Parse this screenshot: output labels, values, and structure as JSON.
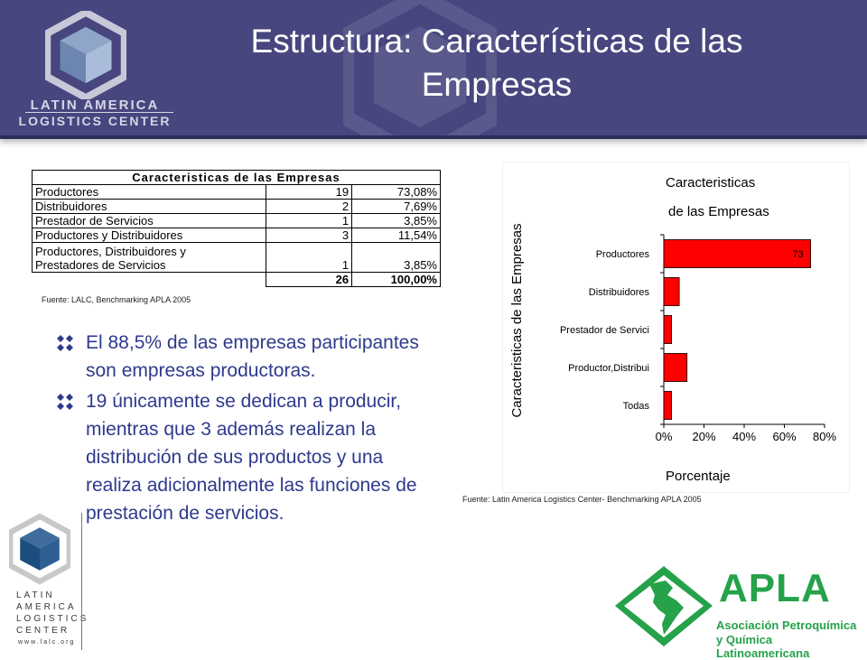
{
  "header": {
    "title_line1": "Estructura: Características de las",
    "title_line2": "Empresas",
    "logo_line1": "LATIN AMERICA",
    "logo_line2": "LOGISTICS CENTER"
  },
  "table": {
    "title": "Caracteristicas de las Empresas",
    "rows": [
      {
        "label": "Productores",
        "count": "19",
        "pct": "73,08%"
      },
      {
        "label": "Distribuidores",
        "count": "2",
        "pct": "7,69%"
      },
      {
        "label": "Prestador de Servicios",
        "count": "1",
        "pct": "3,85%"
      },
      {
        "label": "Productores y Distribuidores",
        "count": "3",
        "pct": "11,54%"
      }
    ],
    "multi_row": {
      "label_line1": "Productores,  Distribuidores y",
      "label_line2": "Prestadores de Servicios",
      "count": "1",
      "pct": "3,85%"
    },
    "total": {
      "count": "26",
      "pct": "100,00%"
    },
    "source": "Fuente: LALC,  Benchmarking APLA 2005"
  },
  "bullets": [
    "El  88,5%  de las empresas participantes son empresas productoras.",
    "19 únicamente se dedican a producir, mientras que 3 además realizan la distribución de sus productos y una realiza adicionalmente las funciones de prestación de servicios."
  ],
  "chart_data": {
    "type": "bar",
    "orientation": "horizontal",
    "title_line1": "Caracteristicas",
    "title_line2": "de las Empresas",
    "ylabel": "Caracteristicas de las Empresas",
    "xlabel": "Porcentaje",
    "categories": [
      "Productores",
      "Distribuidores",
      "Prestador de Servici",
      "Productor,Distribui",
      "Todas"
    ],
    "values": [
      73.08,
      7.69,
      3.85,
      11.54,
      3.85
    ],
    "data_labels": [
      "73",
      "",
      "",
      "",
      ""
    ],
    "xlim": [
      0,
      80
    ],
    "xticks": [
      "0%",
      "20%",
      "40%",
      "60%",
      "80%"
    ],
    "bar_color": "#ff0000",
    "grid": false,
    "source": "Fuente: Latin America Logistics Center- Benchmarking APLA 2005"
  },
  "logo_bottom": {
    "lines": [
      "LATIN",
      "AMERICA",
      "LOGISTICS",
      "CENTER"
    ],
    "url": "www.lalc.org"
  },
  "apla": {
    "name": "APLA",
    "sub1": "Asociación Petroquímica",
    "sub2": "y Química Latinoamericana"
  },
  "colors": {
    "header_bg": "#47467f",
    "bullet_text": "#2e3a8c",
    "bar": "#ff0000",
    "apla_green": "#25a24a"
  }
}
